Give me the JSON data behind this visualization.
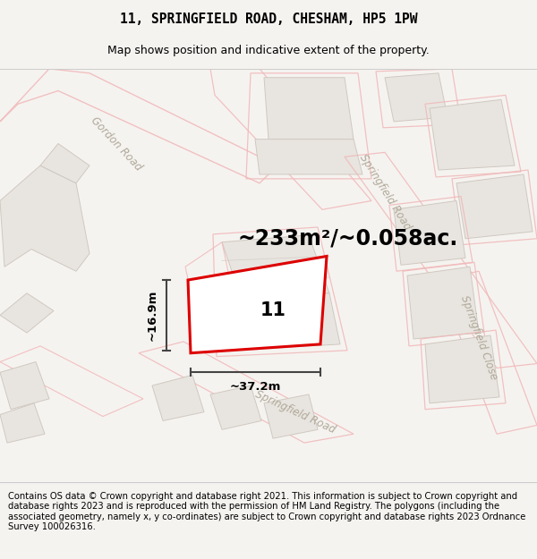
{
  "title_line1": "11, SPRINGFIELD ROAD, CHESHAM, HP5 1PW",
  "title_line2": "Map shows position and indicative extent of the property.",
  "footer_text": "Contains OS data © Crown copyright and database right 2021. This information is subject to Crown copyright and database rights 2023 and is reproduced with the permission of HM Land Registry. The polygons (including the associated geometry, namely x, y co-ordinates) are subject to Crown copyright and database rights 2023 Ordnance Survey 100026316.",
  "bg_color": "#f5f3f0",
  "map_bg_color": "#faf9f7",
  "road_outline_color": "#f0b8b8",
  "building_fill": "#e8e5e0",
  "building_edge": "#d0c8c0",
  "highlight_color": "#dd0000",
  "area_label": "~233m²/~0.058ac.",
  "plot_number": "11",
  "dim_width": "~37.2m",
  "dim_height": "~16.9m",
  "title_fontsize": 10.5,
  "subtitle_fontsize": 9,
  "area_fontsize": 17,
  "plot_num_fontsize": 15,
  "dim_fontsize": 9.5,
  "footer_fontsize": 7.2,
  "road_label_color": "#b0a898",
  "road_label_fontsize": 8.5,
  "footer_bg": "#ffffff"
}
